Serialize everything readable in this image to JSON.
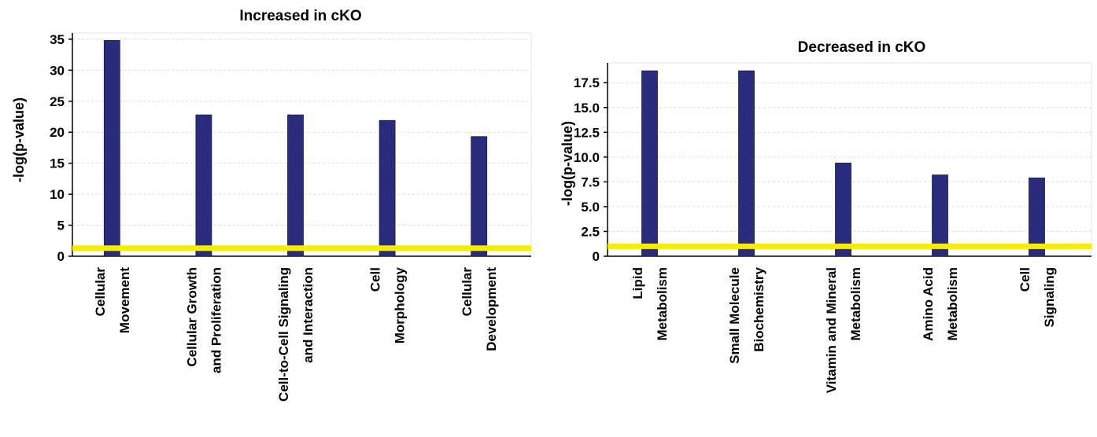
{
  "colors": {
    "bar": "#2b2b7d",
    "threshold": "#f5ec0a",
    "grid": "#dcdcdc",
    "axis": "#000000"
  },
  "chart_data": [
    {
      "type": "bar",
      "title": "Increased in cKO",
      "ylabel": "-log(p-value)",
      "xlabel": "",
      "ylim": [
        0,
        36
      ],
      "yticks": [
        "0",
        "5",
        "10",
        "15",
        "20",
        "25",
        "30",
        "35"
      ],
      "ytick_values": [
        0,
        5,
        10,
        15,
        20,
        25,
        30,
        35
      ],
      "categories": [
        [
          "Cellular",
          "Movement"
        ],
        [
          "Cellular Growth",
          "and Proliferation"
        ],
        [
          "Cell-to-Cell Signaling",
          "and Interaction"
        ],
        [
          "Cell",
          "Morphology"
        ],
        [
          "Cellular",
          "Development"
        ]
      ],
      "values": [
        34.8,
        22.8,
        22.8,
        21.9,
        19.3
      ],
      "threshold": 1.3,
      "grid": true
    },
    {
      "type": "bar",
      "title": "Decreased in cKO",
      "ylabel": "-log(p-value)",
      "xlabel": "",
      "ylim": [
        0,
        19.5
      ],
      "yticks": [
        "0",
        "2.5",
        "5.0",
        "7.5",
        "10.0",
        "12.5",
        "15.0",
        "17.5"
      ],
      "ytick_values": [
        0,
        2.5,
        5,
        7.5,
        10,
        12.5,
        15,
        17.5
      ],
      "categories": [
        [
          "Lipid",
          "Metabolism"
        ],
        [
          "Small Molecule",
          "Biochemistry"
        ],
        [
          "Vitamin and Mineral",
          "Metabolism"
        ],
        [
          "Amino Acid",
          "Metabolism"
        ],
        [
          "Cell",
          "Signaling"
        ]
      ],
      "values": [
        18.7,
        18.7,
        9.4,
        8.2,
        7.9
      ],
      "threshold": 1.0,
      "grid": true
    }
  ]
}
